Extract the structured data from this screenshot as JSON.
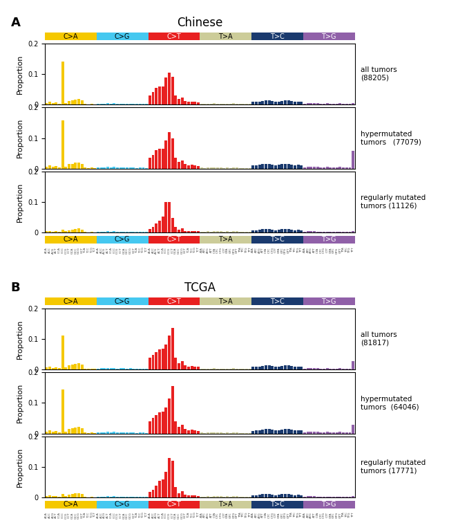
{
  "chart_data": [
    {
      "type": "bar",
      "title": "Chinese",
      "panel_label": "A",
      "y_label": "Proportion",
      "ylim": [
        0,
        0.2
      ],
      "yticks": [
        0,
        0.1,
        0.2
      ],
      "groups": [
        "C>A",
        "C>G",
        "C>T",
        "T>A",
        "T>C",
        "T>G"
      ],
      "categories": [
        "ACA",
        "ACC",
        "ACG",
        "ACT",
        "CCA",
        "CCC",
        "CCG",
        "CCT",
        "GCA",
        "GCC",
        "GCG",
        "GCT",
        "TCA",
        "TCC",
        "TCG",
        "TCT",
        "ACA",
        "ACC",
        "ACG",
        "ACT",
        "CCA",
        "CCC",
        "CCG",
        "CCT",
        "GCA",
        "GCC",
        "GCG",
        "GCT",
        "TCA",
        "TCC",
        "TCG",
        "TCT",
        "ACA",
        "ACC",
        "ACG",
        "ACT",
        "CCA",
        "CCC",
        "CCG",
        "CCT",
        "GCA",
        "GCC",
        "GCG",
        "GCT",
        "TCA",
        "TCC",
        "TCG",
        "TCT",
        "ATA",
        "ATC",
        "ATG",
        "ATT",
        "CTA",
        "CTC",
        "CTG",
        "CTT",
        "GTA",
        "GTC",
        "GTG",
        "GTT",
        "TTA",
        "TTC",
        "TTG",
        "TTT",
        "ATA",
        "ATC",
        "ATG",
        "ATT",
        "CTA",
        "CTC",
        "CTG",
        "CTT",
        "GTA",
        "GTC",
        "GTG",
        "GTT",
        "TTA",
        "TTC",
        "TTG",
        "TTT",
        "ATA",
        "ATC",
        "ATG",
        "ATT",
        "CTA",
        "CTC",
        "CTG",
        "CTT",
        "GTA",
        "GTC",
        "GTG",
        "GTT",
        "TTA",
        "TTC",
        "TTG",
        "TTT"
      ],
      "colors": [
        "#F5C800",
        "#F5C800",
        "#F5C800",
        "#F5C800",
        "#F5C800",
        "#F5C800",
        "#F5C800",
        "#F5C800",
        "#F5C800",
        "#F5C800",
        "#F5C800",
        "#F5C800",
        "#F5C800",
        "#F5C800",
        "#F5C800",
        "#F5C800",
        "#45C8F0",
        "#45C8F0",
        "#45C8F0",
        "#45C8F0",
        "#45C8F0",
        "#45C8F0",
        "#45C8F0",
        "#45C8F0",
        "#45C8F0",
        "#45C8F0",
        "#45C8F0",
        "#45C8F0",
        "#45C8F0",
        "#45C8F0",
        "#45C8F0",
        "#45C8F0",
        "#E82020",
        "#E82020",
        "#E82020",
        "#E82020",
        "#E82020",
        "#E82020",
        "#E82020",
        "#E82020",
        "#E82020",
        "#E82020",
        "#E82020",
        "#E82020",
        "#E82020",
        "#E82020",
        "#E82020",
        "#E82020",
        "#CCCC99",
        "#CCCC99",
        "#CCCC99",
        "#CCCC99",
        "#CCCC99",
        "#CCCC99",
        "#CCCC99",
        "#CCCC99",
        "#CCCC99",
        "#CCCC99",
        "#CCCC99",
        "#CCCC99",
        "#CCCC99",
        "#CCCC99",
        "#CCCC99",
        "#CCCC99",
        "#1A3A6E",
        "#1A3A6E",
        "#1A3A6E",
        "#1A3A6E",
        "#1A3A6E",
        "#1A3A6E",
        "#1A3A6E",
        "#1A3A6E",
        "#1A3A6E",
        "#1A3A6E",
        "#1A3A6E",
        "#1A3A6E",
        "#1A3A6E",
        "#1A3A6E",
        "#1A3A6E",
        "#1A3A6E",
        "#9060A8",
        "#9060A8",
        "#9060A8",
        "#9060A8",
        "#9060A8",
        "#9060A8",
        "#9060A8",
        "#9060A8",
        "#9060A8",
        "#9060A8",
        "#9060A8",
        "#9060A8",
        "#9060A8",
        "#9060A8",
        "#9060A8",
        "#9060A8"
      ],
      "series": [
        {
          "name": "all tumors\n(88205)",
          "values": [
            0.005,
            0.008,
            0.004,
            0.006,
            0.003,
            0.14,
            0.005,
            0.012,
            0.014,
            0.016,
            0.018,
            0.014,
            0.002,
            0.001,
            0.002,
            0.001,
            0.002,
            0.003,
            0.003,
            0.004,
            0.003,
            0.004,
            0.002,
            0.003,
            0.003,
            0.002,
            0.003,
            0.002,
            0.002,
            0.002,
            0.002,
            0.002,
            0.03,
            0.04,
            0.055,
            0.06,
            0.06,
            0.088,
            0.104,
            0.09,
            0.03,
            0.018,
            0.022,
            0.012,
            0.008,
            0.01,
            0.008,
            0.006,
            0.003,
            0.002,
            0.003,
            0.003,
            0.004,
            0.003,
            0.003,
            0.002,
            0.003,
            0.002,
            0.004,
            0.003,
            0.002,
            0.002,
            0.002,
            0.002,
            0.008,
            0.009,
            0.01,
            0.012,
            0.014,
            0.013,
            0.011,
            0.009,
            0.01,
            0.012,
            0.014,
            0.013,
            0.011,
            0.009,
            0.01,
            0.009,
            0.003,
            0.004,
            0.005,
            0.004,
            0.004,
            0.003,
            0.003,
            0.004,
            0.003,
            0.003,
            0.003,
            0.004,
            0.003,
            0.003,
            0.003,
            0.004
          ]
        },
        {
          "name": "hypermutated\ntumors   (77079)",
          "values": [
            0.007,
            0.01,
            0.005,
            0.008,
            0.004,
            0.158,
            0.006,
            0.014,
            0.016,
            0.019,
            0.02,
            0.016,
            0.003,
            0.002,
            0.003,
            0.002,
            0.003,
            0.004,
            0.004,
            0.005,
            0.004,
            0.005,
            0.003,
            0.004,
            0.004,
            0.003,
            0.004,
            0.003,
            0.002,
            0.003,
            0.003,
            0.002,
            0.035,
            0.045,
            0.06,
            0.065,
            0.065,
            0.092,
            0.12,
            0.1,
            0.035,
            0.022,
            0.026,
            0.014,
            0.01,
            0.012,
            0.01,
            0.008,
            0.003,
            0.002,
            0.003,
            0.003,
            0.004,
            0.003,
            0.003,
            0.002,
            0.003,
            0.002,
            0.004,
            0.003,
            0.002,
            0.002,
            0.002,
            0.002,
            0.01,
            0.011,
            0.012,
            0.014,
            0.016,
            0.015,
            0.013,
            0.011,
            0.012,
            0.014,
            0.016,
            0.015,
            0.013,
            0.011,
            0.012,
            0.011,
            0.004,
            0.005,
            0.006,
            0.005,
            0.005,
            0.004,
            0.004,
            0.005,
            0.004,
            0.004,
            0.004,
            0.005,
            0.004,
            0.004,
            0.004,
            0.058
          ]
        },
        {
          "name": "regularly mutated\ntumors (11126)",
          "values": [
            0.005,
            0.006,
            0.003,
            0.005,
            0.002,
            0.01,
            0.004,
            0.008,
            0.01,
            0.012,
            0.013,
            0.01,
            0.002,
            0.001,
            0.002,
            0.001,
            0.002,
            0.003,
            0.003,
            0.004,
            0.003,
            0.004,
            0.002,
            0.003,
            0.003,
            0.002,
            0.003,
            0.002,
            0.002,
            0.002,
            0.002,
            0.002,
            0.012,
            0.018,
            0.03,
            0.038,
            0.052,
            0.1,
            0.1,
            0.048,
            0.018,
            0.01,
            0.014,
            0.006,
            0.005,
            0.006,
            0.005,
            0.004,
            0.003,
            0.002,
            0.004,
            0.003,
            0.005,
            0.005,
            0.004,
            0.003,
            0.005,
            0.003,
            0.006,
            0.005,
            0.003,
            0.002,
            0.003,
            0.003,
            0.007,
            0.008,
            0.009,
            0.011,
            0.012,
            0.011,
            0.009,
            0.008,
            0.009,
            0.011,
            0.012,
            0.011,
            0.009,
            0.008,
            0.009,
            0.008,
            0.003,
            0.004,
            0.004,
            0.004,
            0.003,
            0.003,
            0.003,
            0.003,
            0.003,
            0.003,
            0.003,
            0.003,
            0.003,
            0.003,
            0.003,
            0.004
          ]
        }
      ]
    },
    {
      "type": "bar",
      "title": "TCGA",
      "panel_label": "B",
      "y_label": "Proportion",
      "ylim": [
        0,
        0.2
      ],
      "yticks": [
        0,
        0.1,
        0.2
      ],
      "groups": [
        "C>A",
        "C>G",
        "C>T",
        "T>A",
        "T>C",
        "T>G"
      ],
      "categories": [
        "ACA",
        "ACC",
        "ACG",
        "ACT",
        "CCA",
        "CCC",
        "CCG",
        "CCT",
        "GCA",
        "GCC",
        "GCG",
        "GCT",
        "TCA",
        "TCC",
        "TCG",
        "TCT",
        "ACA",
        "ACC",
        "ACG",
        "ACT",
        "CCA",
        "CCC",
        "CCG",
        "CCT",
        "GCA",
        "GCC",
        "GCG",
        "GCT",
        "TCA",
        "TCC",
        "TCG",
        "TCT",
        "ACA",
        "ACC",
        "ACG",
        "ACT",
        "CCA",
        "CCC",
        "CCG",
        "CCT",
        "GCA",
        "GCC",
        "GCG",
        "GCT",
        "TCA",
        "TCC",
        "TCG",
        "TCT",
        "ATA",
        "ATC",
        "ATG",
        "ATT",
        "CTA",
        "CTC",
        "CTG",
        "CTT",
        "GTA",
        "GTC",
        "GTG",
        "GTT",
        "TTA",
        "TTC",
        "TTG",
        "TTT",
        "ATA",
        "ATC",
        "ATG",
        "ATT",
        "CTA",
        "CTC",
        "CTG",
        "CTT",
        "GTA",
        "GTC",
        "GTG",
        "GTT",
        "TTA",
        "TTC",
        "TTG",
        "TTT",
        "ATA",
        "ATC",
        "ATG",
        "ATT",
        "CTA",
        "CTC",
        "CTG",
        "CTT",
        "GTA",
        "GTC",
        "GTG",
        "GTT",
        "TTA",
        "TTC",
        "TTG",
        "TTT"
      ],
      "colors": [
        "#F5C800",
        "#F5C800",
        "#F5C800",
        "#F5C800",
        "#F5C800",
        "#F5C800",
        "#F5C800",
        "#F5C800",
        "#F5C800",
        "#F5C800",
        "#F5C800",
        "#F5C800",
        "#F5C800",
        "#F5C800",
        "#F5C800",
        "#F5C800",
        "#45C8F0",
        "#45C8F0",
        "#45C8F0",
        "#45C8F0",
        "#45C8F0",
        "#45C8F0",
        "#45C8F0",
        "#45C8F0",
        "#45C8F0",
        "#45C8F0",
        "#45C8F0",
        "#45C8F0",
        "#45C8F0",
        "#45C8F0",
        "#45C8F0",
        "#45C8F0",
        "#E82020",
        "#E82020",
        "#E82020",
        "#E82020",
        "#E82020",
        "#E82020",
        "#E82020",
        "#E82020",
        "#E82020",
        "#E82020",
        "#E82020",
        "#E82020",
        "#E82020",
        "#E82020",
        "#E82020",
        "#E82020",
        "#CCCC99",
        "#CCCC99",
        "#CCCC99",
        "#CCCC99",
        "#CCCC99",
        "#CCCC99",
        "#CCCC99",
        "#CCCC99",
        "#CCCC99",
        "#CCCC99",
        "#CCCC99",
        "#CCCC99",
        "#CCCC99",
        "#CCCC99",
        "#CCCC99",
        "#CCCC99",
        "#1A3A6E",
        "#1A3A6E",
        "#1A3A6E",
        "#1A3A6E",
        "#1A3A6E",
        "#1A3A6E",
        "#1A3A6E",
        "#1A3A6E",
        "#1A3A6E",
        "#1A3A6E",
        "#1A3A6E",
        "#1A3A6E",
        "#1A3A6E",
        "#1A3A6E",
        "#1A3A6E",
        "#1A3A6E",
        "#9060A8",
        "#9060A8",
        "#9060A8",
        "#9060A8",
        "#9060A8",
        "#9060A8",
        "#9060A8",
        "#9060A8",
        "#9060A8",
        "#9060A8",
        "#9060A8",
        "#9060A8",
        "#9060A8",
        "#9060A8",
        "#9060A8",
        "#9060A8"
      ],
      "series": [
        {
          "name": "all tumors\n(81817)",
          "values": [
            0.006,
            0.009,
            0.005,
            0.007,
            0.004,
            0.112,
            0.006,
            0.013,
            0.015,
            0.018,
            0.02,
            0.016,
            0.003,
            0.002,
            0.003,
            0.002,
            0.003,
            0.004,
            0.004,
            0.005,
            0.004,
            0.005,
            0.003,
            0.004,
            0.004,
            0.003,
            0.004,
            0.003,
            0.002,
            0.003,
            0.003,
            0.002,
            0.038,
            0.048,
            0.056,
            0.065,
            0.068,
            0.082,
            0.112,
            0.135,
            0.038,
            0.02,
            0.026,
            0.014,
            0.01,
            0.012,
            0.01,
            0.008,
            0.003,
            0.002,
            0.003,
            0.003,
            0.004,
            0.003,
            0.003,
            0.002,
            0.003,
            0.002,
            0.004,
            0.003,
            0.002,
            0.002,
            0.002,
            0.002,
            0.008,
            0.009,
            0.01,
            0.012,
            0.014,
            0.013,
            0.011,
            0.009,
            0.01,
            0.012,
            0.014,
            0.013,
            0.011,
            0.009,
            0.01,
            0.009,
            0.003,
            0.004,
            0.005,
            0.004,
            0.004,
            0.003,
            0.003,
            0.004,
            0.003,
            0.003,
            0.003,
            0.004,
            0.003,
            0.003,
            0.003,
            0.026
          ]
        },
        {
          "name": "hypermutated\ntumors  (64046)",
          "values": [
            0.006,
            0.01,
            0.005,
            0.008,
            0.004,
            0.145,
            0.006,
            0.014,
            0.016,
            0.02,
            0.022,
            0.017,
            0.003,
            0.002,
            0.003,
            0.002,
            0.003,
            0.004,
            0.004,
            0.005,
            0.004,
            0.005,
            0.003,
            0.004,
            0.004,
            0.003,
            0.004,
            0.003,
            0.002,
            0.003,
            0.003,
            0.002,
            0.04,
            0.052,
            0.06,
            0.07,
            0.072,
            0.085,
            0.115,
            0.155,
            0.04,
            0.022,
            0.028,
            0.015,
            0.011,
            0.013,
            0.011,
            0.009,
            0.003,
            0.002,
            0.003,
            0.003,
            0.004,
            0.003,
            0.003,
            0.002,
            0.003,
            0.002,
            0.004,
            0.003,
            0.002,
            0.002,
            0.002,
            0.002,
            0.009,
            0.01,
            0.011,
            0.013,
            0.015,
            0.014,
            0.012,
            0.01,
            0.011,
            0.013,
            0.015,
            0.014,
            0.012,
            0.01,
            0.011,
            0.01,
            0.004,
            0.005,
            0.006,
            0.005,
            0.005,
            0.004,
            0.004,
            0.005,
            0.004,
            0.004,
            0.004,
            0.005,
            0.004,
            0.004,
            0.004,
            0.028
          ]
        },
        {
          "name": "regularly mutated\ntumors (17771)",
          "values": [
            0.005,
            0.007,
            0.004,
            0.006,
            0.003,
            0.012,
            0.005,
            0.01,
            0.012,
            0.014,
            0.015,
            0.012,
            0.002,
            0.001,
            0.002,
            0.001,
            0.002,
            0.003,
            0.003,
            0.004,
            0.003,
            0.004,
            0.002,
            0.003,
            0.003,
            0.002,
            0.003,
            0.002,
            0.002,
            0.002,
            0.002,
            0.002,
            0.018,
            0.025,
            0.04,
            0.055,
            0.06,
            0.085,
            0.13,
            0.12,
            0.035,
            0.015,
            0.02,
            0.01,
            0.007,
            0.008,
            0.007,
            0.005,
            0.003,
            0.002,
            0.004,
            0.003,
            0.005,
            0.005,
            0.004,
            0.003,
            0.005,
            0.003,
            0.006,
            0.005,
            0.003,
            0.002,
            0.003,
            0.003,
            0.007,
            0.008,
            0.009,
            0.011,
            0.012,
            0.011,
            0.009,
            0.008,
            0.009,
            0.011,
            0.012,
            0.011,
            0.009,
            0.008,
            0.009,
            0.008,
            0.003,
            0.004,
            0.004,
            0.004,
            0.003,
            0.003,
            0.003,
            0.003,
            0.003,
            0.003,
            0.003,
            0.003,
            0.003,
            0.003,
            0.003,
            0.004
          ]
        }
      ]
    }
  ]
}
